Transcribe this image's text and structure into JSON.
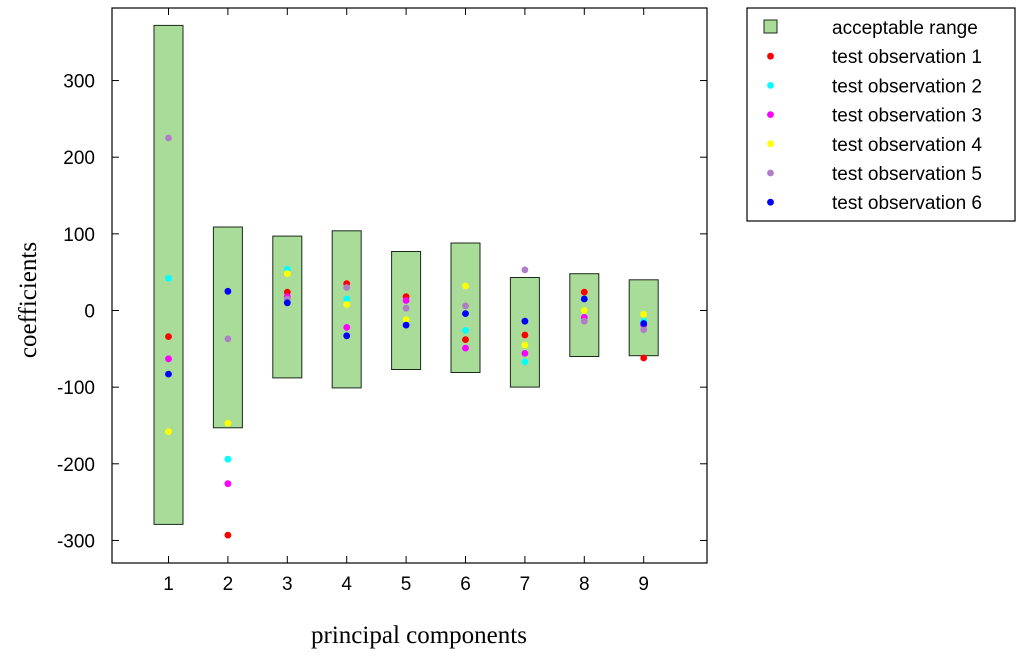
{
  "chart_data": {
    "type": "scatter",
    "title": "",
    "xlabel": "principal components",
    "ylabel": "coefficients",
    "xlim": [
      0,
      10
    ],
    "ylim": [
      -330,
      375
    ],
    "x_ticks": [
      1,
      2,
      3,
      4,
      5,
      6,
      7,
      8,
      9
    ],
    "x_tick_labels": [
      "1",
      "2",
      "3",
      "4",
      "5",
      "6",
      "7",
      "8",
      "9"
    ],
    "y_ticks": [
      -300,
      -200,
      -100,
      0,
      100,
      200,
      300
    ],
    "y_tick_labels": [
      "-300",
      "-200",
      "-100",
      "0",
      "100",
      "200",
      "300"
    ],
    "grid": false,
    "legend_position": "outside-top-right",
    "acceptable_range": {
      "name": "acceptable range",
      "color": "#a8dc98",
      "lower": [
        -279,
        -153,
        -88,
        -101,
        -77,
        -81,
        -100,
        -60,
        -59
      ],
      "upper": [
        372,
        109,
        97,
        104,
        77,
        88,
        43,
        48,
        40
      ]
    },
    "series": [
      {
        "name": "test observation 1",
        "color": "#ff0000",
        "values": [
          -34,
          -293,
          24,
          35,
          18,
          -38,
          -32,
          24,
          -62
        ]
      },
      {
        "name": "test observation 2",
        "color": "#00ffff",
        "values": [
          42,
          -194,
          54,
          15,
          -12,
          -26,
          -67,
          0,
          -14
        ]
      },
      {
        "name": "test observation 3",
        "color": "#ff00ff",
        "values": [
          -63,
          -226,
          18,
          -22,
          13,
          -49,
          -56,
          -9,
          -19
        ]
      },
      {
        "name": "test observation 4",
        "color": "#ffff00",
        "values": [
          -158,
          -147,
          48,
          8,
          -12,
          32,
          -45,
          0,
          -5
        ]
      },
      {
        "name": "test observation 5",
        "color": "#b07cc6",
        "values": [
          225,
          -37,
          15,
          30,
          3,
          6,
          53,
          -14,
          -25
        ]
      },
      {
        "name": "test observation 6",
        "color": "#0000ff",
        "values": [
          -83,
          25,
          10,
          -33,
          -19,
          -4,
          -14,
          15,
          -17
        ]
      }
    ]
  }
}
